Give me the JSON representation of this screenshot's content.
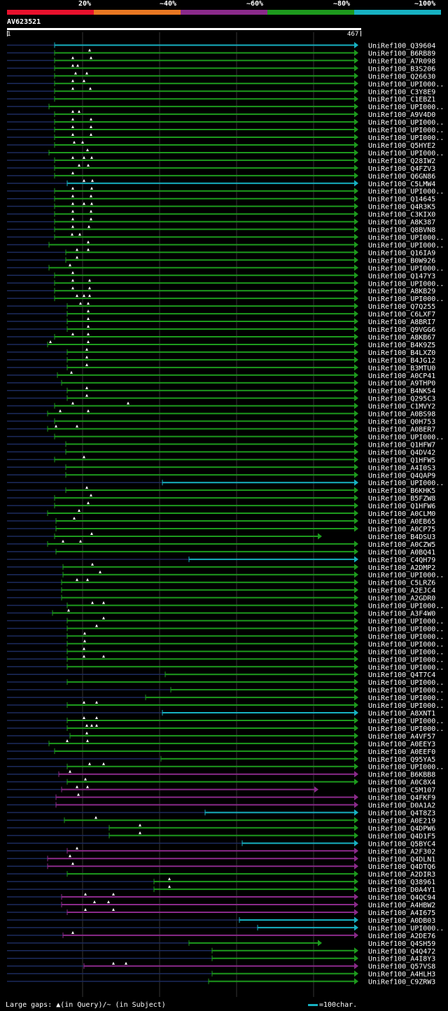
{
  "header": {
    "percent_labels": [
      "20%",
      "~40%",
      "~60%",
      "~80%",
      "~100%"
    ],
    "colors": [
      "#e8112d",
      "#e87722",
      "#8a2a8a",
      "#1d9a1d",
      "#17b1c2"
    ]
  },
  "query": {
    "id": "AV623521",
    "start": "1",
    "end": "467"
  },
  "footer": {
    "legend": "Large gaps: ▲(in Query)/~ (in Subject)",
    "scale": "=100char."
  },
  "rows": [
    {
      "label": "UniRef100_Q39604",
      "c": "cyan",
      "s": 78,
      "e": 512,
      "t": []
    },
    {
      "label": "UniRef100_B6RB89",
      "c": "green",
      "s": 78,
      "e": 512,
      "t": [
        128
      ]
    },
    {
      "label": "UniRef100_A7R098",
      "c": "green",
      "s": 78,
      "e": 512,
      "t": [
        104,
        130
      ]
    },
    {
      "label": "UniRef100_B3S206",
      "c": "green",
      "s": 78,
      "e": 512,
      "t": [
        104,
        111
      ]
    },
    {
      "label": "UniRef100_Q26630",
      "c": "green",
      "s": 78,
      "e": 512,
      "t": [
        108,
        124
      ]
    },
    {
      "label": "UniRef100_UPI000..",
      "c": "green",
      "s": 78,
      "e": 512,
      "t": [
        104,
        120
      ]
    },
    {
      "label": "UniRef100_C3Y8E9",
      "c": "green",
      "s": 78,
      "e": 512,
      "t": [
        104,
        129
      ]
    },
    {
      "label": "UniRef100_C1EBZ1",
      "c": "green",
      "s": 78,
      "e": 512,
      "t": []
    },
    {
      "label": "UniRef100_UPI000..",
      "c": "green",
      "s": 70,
      "e": 512,
      "t": []
    },
    {
      "label": "UniRef100_A9V4D0",
      "c": "green",
      "s": 78,
      "e": 512,
      "t": [
        104,
        113
      ]
    },
    {
      "label": "UniRef100_UPI000..",
      "c": "green",
      "s": 78,
      "e": 512,
      "t": [
        104,
        130
      ]
    },
    {
      "label": "UniRef100_UPI000..",
      "c": "green",
      "s": 78,
      "e": 512,
      "t": [
        104,
        130
      ]
    },
    {
      "label": "UniRef100_UPI000..",
      "c": "green",
      "s": 78,
      "e": 512,
      "t": [
        104,
        130
      ]
    },
    {
      "label": "UniRef100_Q5HYE2",
      "c": "green",
      "s": 78,
      "e": 512,
      "t": [
        106,
        118
      ]
    },
    {
      "label": "UniRef100_UPI000..",
      "c": "green",
      "s": 70,
      "e": 512,
      "t": [
        125
      ]
    },
    {
      "label": "UniRef100_Q28IW2",
      "c": "green",
      "s": 78,
      "e": 512,
      "t": [
        104,
        120,
        131
      ]
    },
    {
      "label": "UniRef100_Q4FZV3",
      "c": "green",
      "s": 78,
      "e": 512,
      "t": [
        113,
        126
      ]
    },
    {
      "label": "UniRef100_Q6GN86",
      "c": "green",
      "s": 78,
      "e": 512,
      "t": [
        104
      ]
    },
    {
      "label": "UniRef100_C5LMW4",
      "c": "cyan",
      "s": 96,
      "e": 512,
      "t": [
        120,
        132
      ]
    },
    {
      "label": "UniRef100_UPI000..",
      "c": "green",
      "s": 78,
      "e": 512,
      "t": [
        104,
        131
      ]
    },
    {
      "label": "UniRef100_Q14645",
      "c": "green",
      "s": 78,
      "e": 512,
      "t": [
        104,
        130
      ]
    },
    {
      "label": "UniRef100_Q4R3K5",
      "c": "green",
      "s": 78,
      "e": 512,
      "t": [
        104,
        120,
        131
      ]
    },
    {
      "label": "UniRef100_C3KIX0",
      "c": "green",
      "s": 78,
      "e": 512,
      "t": [
        104,
        130
      ]
    },
    {
      "label": "UniRef100_A8K387",
      "c": "green",
      "s": 78,
      "e": 512,
      "t": [
        104,
        130
      ]
    },
    {
      "label": "UniRef100_Q8BVN8",
      "c": "green",
      "s": 78,
      "e": 512,
      "t": [
        104,
        127
      ]
    },
    {
      "label": "UniRef100_UPI000..",
      "c": "green",
      "s": 78,
      "e": 512,
      "t": [
        103,
        114
      ]
    },
    {
      "label": "UniRef100_UPI000..",
      "c": "green",
      "s": 70,
      "e": 512,
      "t": [
        126
      ]
    },
    {
      "label": "UniRef100_Q16IA9",
      "c": "green",
      "s": 94,
      "e": 512,
      "t": [
        110,
        126
      ]
    },
    {
      "label": "UniRef100_B0W926",
      "c": "green",
      "s": 94,
      "e": 512,
      "t": [
        110
      ]
    },
    {
      "label": "UniRef100_UPI000..",
      "c": "green",
      "s": 70,
      "e": 512,
      "t": [
        100
      ]
    },
    {
      "label": "UniRef100_Q147Y3",
      "c": "green",
      "s": 78,
      "e": 512,
      "t": [
        104
      ]
    },
    {
      "label": "UniRef100_UPI000..",
      "c": "green",
      "s": 78,
      "e": 512,
      "t": [
        104,
        128
      ]
    },
    {
      "label": "UniRef100_A8KB29",
      "c": "green",
      "s": 78,
      "e": 512,
      "t": [
        104,
        128
      ]
    },
    {
      "label": "UniRef100_UPI000..",
      "c": "green",
      "s": 78,
      "e": 512,
      "t": [
        110,
        120,
        128
      ]
    },
    {
      "label": "UniRef100_Q7Q255",
      "c": "green",
      "s": 96,
      "e": 512,
      "t": [
        115,
        126
      ]
    },
    {
      "label": "UniRef100_C6LXF7",
      "c": "green",
      "s": 96,
      "e": 512,
      "t": [
        126
      ]
    },
    {
      "label": "UniRef100_A8BRI7",
      "c": "green",
      "s": 96,
      "e": 512,
      "t": [
        126
      ]
    },
    {
      "label": "UniRef100_Q9VGG6",
      "c": "green",
      "s": 96,
      "e": 512,
      "t": [
        126
      ]
    },
    {
      "label": "UniRef100_A8KB67",
      "c": "green",
      "s": 78,
      "e": 512,
      "t": [
        104,
        126
      ]
    },
    {
      "label": "UniRef100_B4K9Z5",
      "c": "green",
      "s": 68,
      "e": 512,
      "t": [
        72,
        126
      ]
    },
    {
      "label": "UniRef100_B4LXZ0",
      "c": "green",
      "s": 96,
      "e": 512,
      "t": [
        124
      ]
    },
    {
      "label": "UniRef100_B4JG12",
      "c": "green",
      "s": 96,
      "e": 512,
      "t": [
        124
      ]
    },
    {
      "label": "UniRef100_B3MTU0",
      "c": "green",
      "s": 96,
      "e": 512,
      "t": [
        124
      ]
    },
    {
      "label": "UniRef100_A0CP41",
      "c": "green",
      "s": 82,
      "e": 512,
      "t": [
        102
      ]
    },
    {
      "label": "UniRef100_A9THP0",
      "c": "green",
      "s": 88,
      "e": 512,
      "t": []
    },
    {
      "label": "UniRef100_B4NK54",
      "c": "green",
      "s": 96,
      "e": 512,
      "t": [
        124
      ]
    },
    {
      "label": "UniRef100_Q295C3",
      "c": "green",
      "s": 96,
      "e": 512,
      "t": [
        124
      ]
    },
    {
      "label": "UniRef100_C1MVY2",
      "c": "green",
      "s": 78,
      "e": 512,
      "t": [
        104,
        183
      ]
    },
    {
      "label": "UniRef100_A0BS98",
      "c": "green",
      "s": 68,
      "e": 512,
      "t": [
        86,
        126
      ]
    },
    {
      "label": "UniRef100_Q0H753",
      "c": "green",
      "s": 78,
      "e": 512,
      "t": []
    },
    {
      "label": "UniRef100_A0BER7",
      "c": "green",
      "s": 68,
      "e": 512,
      "t": [
        80,
        110
      ]
    },
    {
      "label": "UniRef100_UPI000..",
      "c": "green",
      "s": 78,
      "e": 512,
      "t": []
    },
    {
      "label": "UniRef100_Q1HFW7",
      "c": "green",
      "s": 94,
      "e": 512,
      "t": []
    },
    {
      "label": "UniRef100_Q4DV42",
      "c": "green",
      "s": 94,
      "e": 512,
      "t": []
    },
    {
      "label": "UniRef100_Q1HFW5",
      "c": "green",
      "s": 78,
      "e": 512,
      "t": [
        120
      ]
    },
    {
      "label": "UniRef100_A4I0S3",
      "c": "green",
      "s": 94,
      "e": 512,
      "t": []
    },
    {
      "label": "UniRef100_Q4QAP9",
      "c": "green",
      "s": 94,
      "e": 512,
      "t": []
    },
    {
      "label": "UniRef100_UPI000..",
      "c": "cyan",
      "s": 232,
      "e": 512,
      "t": []
    },
    {
      "label": "UniRef100_B6KHK5",
      "c": "green",
      "s": 94,
      "e": 512,
      "t": [
        124
      ]
    },
    {
      "label": "UniRef100_B5FZW8",
      "c": "green",
      "s": 78,
      "e": 512,
      "t": [
        130
      ]
    },
    {
      "label": "UniRef100_Q1HFW6",
      "c": "green",
      "s": 78,
      "e": 512,
      "t": [
        126
      ]
    },
    {
      "label": "UniRef100_A0CLM0",
      "c": "green",
      "s": 68,
      "e": 512,
      "t": [
        113
      ]
    },
    {
      "label": "UniRef100_A0EB65",
      "c": "green",
      "s": 80,
      "e": 512,
      "t": [
        106
      ]
    },
    {
      "label": "UniRef100_A0CP75",
      "c": "green",
      "s": 80,
      "e": 512,
      "t": []
    },
    {
      "label": "UniRef100_B4DSU3",
      "c": "green",
      "s": 78,
      "e": 460,
      "t": [
        131
      ]
    },
    {
      "label": "UniRef100_A0CZW5",
      "c": "green",
      "s": 68,
      "e": 512,
      "t": [
        90,
        115
      ]
    },
    {
      "label": "UniRef100_A0BQ41",
      "c": "green",
      "s": 80,
      "e": 512,
      "t": []
    },
    {
      "label": "UniRef100_C4QH79",
      "c": "cyan",
      "s": 270,
      "e": 512,
      "t": []
    },
    {
      "label": "UniRef100_A2DMP2",
      "c": "green",
      "s": 90,
      "e": 512,
      "t": [
        132
      ]
    },
    {
      "label": "UniRef100_UPI000..",
      "c": "green",
      "s": 90,
      "e": 512,
      "t": [
        143
      ]
    },
    {
      "label": "UniRef100_C5LRZ6",
      "c": "green",
      "s": 88,
      "e": 512,
      "t": [
        110,
        125
      ]
    },
    {
      "label": "UniRef100_A2EJC4",
      "c": "green",
      "s": 88,
      "e": 512,
      "t": []
    },
    {
      "label": "UniRef100_A2GDR0",
      "c": "green",
      "s": 88,
      "e": 512,
      "t": []
    },
    {
      "label": "UniRef100_UPI000..",
      "c": "green",
      "s": 96,
      "e": 512,
      "t": [
        132,
        148
      ]
    },
    {
      "label": "UniRef100_A3F4W0",
      "c": "green",
      "s": 75,
      "e": 512,
      "t": [
        98
      ]
    },
    {
      "label": "UniRef100_UPI000..",
      "c": "green",
      "s": 96,
      "e": 512,
      "t": [
        148
      ]
    },
    {
      "label": "UniRef100_UPI000..",
      "c": "green",
      "s": 96,
      "e": 512,
      "t": [
        138
      ]
    },
    {
      "label": "UniRef100_UPI000..",
      "c": "green",
      "s": 96,
      "e": 512,
      "t": [
        121
      ]
    },
    {
      "label": "UniRef100_UPI000..",
      "c": "green",
      "s": 96,
      "e": 512,
      "t": [
        121
      ]
    },
    {
      "label": "UniRef100_UPI000..",
      "c": "green",
      "s": 96,
      "e": 512,
      "t": [
        120
      ]
    },
    {
      "label": "UniRef100_UPI000..",
      "c": "green",
      "s": 96,
      "e": 512,
      "t": [
        120,
        148
      ]
    },
    {
      "label": "UniRef100_UPI000..",
      "c": "green",
      "s": 96,
      "e": 512,
      "t": []
    },
    {
      "label": "UniRef100_Q4T7C4",
      "c": "green",
      "s": 236,
      "e": 512,
      "t": []
    },
    {
      "label": "UniRef100_UPI000..",
      "c": "green",
      "s": 96,
      "e": 512,
      "t": []
    },
    {
      "label": "UniRef100_UPI000..",
      "c": "green",
      "s": 244,
      "e": 512,
      "t": []
    },
    {
      "label": "UniRef100_UPI000..",
      "c": "green",
      "s": 208,
      "e": 512,
      "t": []
    },
    {
      "label": "UniRef100_UPI000..",
      "c": "green",
      "s": 96,
      "e": 512,
      "t": [
        120,
        138
      ]
    },
    {
      "label": "UniRef100_A8XNT1",
      "c": "cyan",
      "s": 232,
      "e": 512,
      "t": []
    },
    {
      "label": "UniRef100_UPI000..",
      "c": "green",
      "s": 96,
      "e": 512,
      "t": [
        120,
        138
      ]
    },
    {
      "label": "UniRef100_UPI000..",
      "c": "green",
      "s": 96,
      "e": 512,
      "t": [
        124,
        131,
        138
      ]
    },
    {
      "label": "UniRef100_A4VF57",
      "c": "green",
      "s": 100,
      "e": 512,
      "t": [
        124
      ]
    },
    {
      "label": "UniRef100_A0EEY3",
      "c": "green",
      "s": 70,
      "e": 512,
      "t": [
        96,
        125
      ]
    },
    {
      "label": "UniRef100_A0EEF0",
      "c": "green",
      "s": 78,
      "e": 512,
      "t": []
    },
    {
      "label": "UniRef100_Q95YA5",
      "c": "green",
      "s": 230,
      "e": 512,
      "t": []
    },
    {
      "label": "UniRef100_UPI000..",
      "c": "green",
      "s": 96,
      "e": 512,
      "t": [
        128,
        148
      ]
    },
    {
      "label": "UniRef100_B6KBB8",
      "c": "purple",
      "s": 84,
      "e": 512,
      "t": [
        100
      ]
    },
    {
      "label": "UniRef100_A0C8X4",
      "c": "green",
      "s": 96,
      "e": 512,
      "t": [
        122
      ]
    },
    {
      "label": "UniRef100_C5M107",
      "c": "purple",
      "s": 88,
      "e": 455,
      "t": [
        110,
        125
      ]
    },
    {
      "label": "UniRef100_Q4FKF9",
      "c": "purple",
      "s": 80,
      "e": 512,
      "t": [
        112
      ]
    },
    {
      "label": "UniRef100_D0A1A2",
      "c": "purple",
      "s": 80,
      "e": 512,
      "t": []
    },
    {
      "label": "UniRef100_Q4T8Z3",
      "c": "cyan",
      "s": 293,
      "e": 512,
      "t": []
    },
    {
      "label": "UniRef100_A0E219",
      "c": "green",
      "s": 92,
      "e": 512,
      "t": [
        137
      ]
    },
    {
      "label": "UniRef100_Q4DPW6",
      "c": "green",
      "s": 156,
      "e": 512,
      "t": [
        200
      ]
    },
    {
      "label": "UniRef100_Q4D1F5",
      "c": "green",
      "s": 156,
      "e": 512,
      "t": [
        200
      ]
    },
    {
      "label": "UniRef100_Q5BYC4",
      "c": "cyan",
      "s": 346,
      "e": 512,
      "t": []
    },
    {
      "label": "UniRef100_A2F302",
      "c": "purple",
      "s": 96,
      "e": 512,
      "t": [
        110
      ]
    },
    {
      "label": "UniRef100_Q4DLN1",
      "c": "purple",
      "s": 68,
      "e": 512,
      "t": [
        100
      ]
    },
    {
      "label": "UniRef100_Q4DTQ6",
      "c": "purple",
      "s": 68,
      "e": 512,
      "t": [
        104
      ]
    },
    {
      "label": "UniRef100_A2DIR3",
      "c": "green",
      "s": 96,
      "e": 512,
      "t": []
    },
    {
      "label": "UniRef100_Q38961",
      "c": "green",
      "s": 220,
      "e": 512,
      "t": [
        242
      ]
    },
    {
      "label": "UniRef100_D0A4Y1",
      "c": "green",
      "s": 220,
      "e": 512,
      "t": [
        242
      ]
    },
    {
      "label": "UniRef100_Q4QC94",
      "c": "purple",
      "s": 88,
      "e": 512,
      "t": [
        122,
        162
      ]
    },
    {
      "label": "UniRef100_A4HBW2",
      "c": "purple",
      "s": 88,
      "e": 512,
      "t": [
        135,
        155
      ]
    },
    {
      "label": "UniRef100_A4I675",
      "c": "purple",
      "s": 96,
      "e": 512,
      "t": [
        122,
        162
      ]
    },
    {
      "label": "UniRef100_A0DB03",
      "c": "cyan",
      "s": 342,
      "e": 512,
      "t": []
    },
    {
      "label": "UniRef100_UPI000..",
      "c": "cyan",
      "s": 368,
      "e": 512,
      "t": []
    },
    {
      "label": "UniRef100_A2DE76",
      "c": "purple",
      "s": 90,
      "e": 512,
      "t": [
        104
      ]
    },
    {
      "label": "UniRef100_Q4SH59",
      "c": "green",
      "s": 270,
      "e": 460,
      "t": []
    },
    {
      "label": "UniRef100_Q4Q472",
      "c": "green",
      "s": 303,
      "e": 512,
      "t": []
    },
    {
      "label": "UniRef100_A4I8Y3",
      "c": "green",
      "s": 303,
      "e": 512,
      "t": []
    },
    {
      "label": "UniRef100_Q57VS8",
      "c": "purple",
      "s": 120,
      "e": 512,
      "t": [
        162,
        180
      ]
    },
    {
      "label": "UniRef100_A4HLH3",
      "c": "green",
      "s": 303,
      "e": 512,
      "t": []
    },
    {
      "label": "UniRef100_C9ZRW3",
      "c": "green",
      "s": 298,
      "e": 512,
      "t": []
    }
  ]
}
